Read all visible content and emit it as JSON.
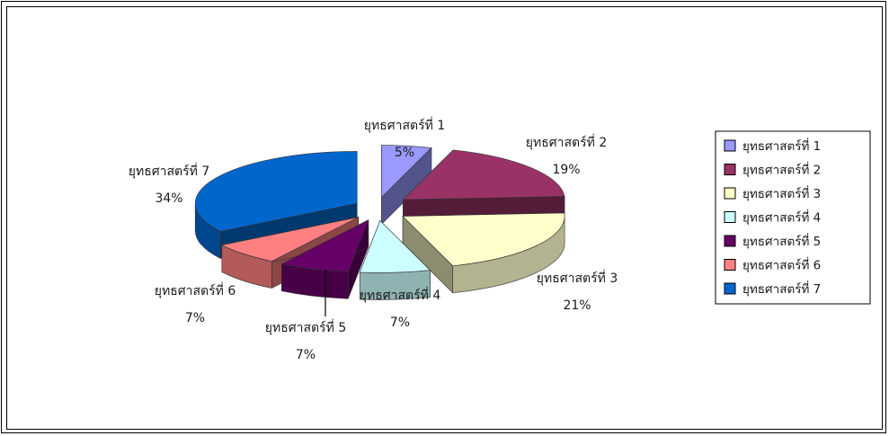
{
  "chart_data": {
    "type": "pie",
    "three_d": true,
    "exploded": true,
    "legend_placement": "right",
    "slices": [
      {
        "label": "ยุทธศาสตร์ที่ 1",
        "value": 5,
        "percent_label": "5%",
        "color": "#9999ff"
      },
      {
        "label": "ยุทธศาสตร์ที่ 2",
        "value": 19,
        "percent_label": "19%",
        "color": "#993366"
      },
      {
        "label": "ยุทธศาสตร์ที่ 3",
        "value": 21,
        "percent_label": "21%",
        "color": "#ffffcc"
      },
      {
        "label": "ยุทธศาสตร์ที่ 4",
        "value": 7,
        "percent_label": "7%",
        "color": "#ccffff"
      },
      {
        "label": "ยุทธศาสตร์ที่ 5",
        "value": 7,
        "percent_label": "7%",
        "color": "#660066"
      },
      {
        "label": "ยุทธศาสตร์ที่ 6",
        "value": 7,
        "percent_label": "7%",
        "color": "#ff8080"
      },
      {
        "label": "ยุทธศาสตร์ที่ 7",
        "value": 34,
        "percent_label": "34%",
        "color": "#0066cc"
      }
    ]
  }
}
